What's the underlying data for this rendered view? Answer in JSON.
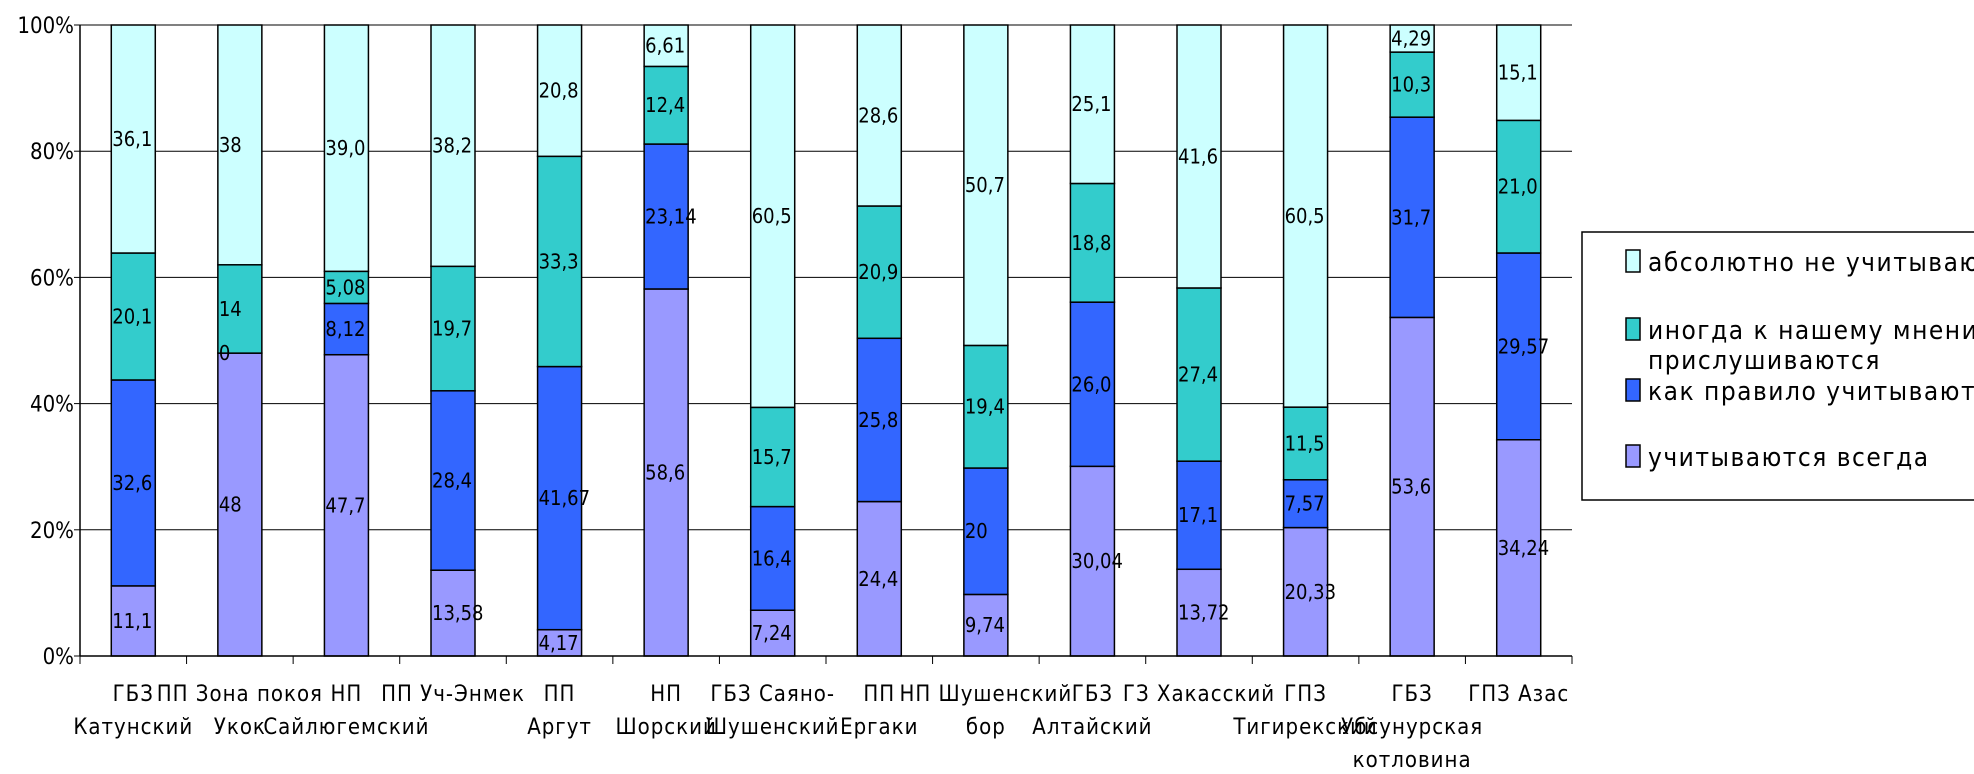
{
  "chart_data": {
    "type": "bar",
    "stacked": true,
    "percent_stacked": true,
    "title": "",
    "xlabel": "",
    "ylabel": "",
    "ylim": [
      0,
      100
    ],
    "y_ticks": [
      "0%",
      "20%",
      "40%",
      "60%",
      "80%",
      "100%"
    ],
    "grid": true,
    "legend_position": "right",
    "categories": [
      [
        "ГБЗ",
        "Катунский"
      ],
      [
        "ПП Зона покоя",
        "Укок"
      ],
      [
        "НП",
        "Сайлюгемский"
      ],
      [
        "ПП Уч-Энмек"
      ],
      [
        "ПП",
        "Аргут"
      ],
      [
        "НП",
        "Шорский"
      ],
      [
        "ГБЗ Саяно-",
        "Шушенский"
      ],
      [
        "ПП",
        "Ергаки"
      ],
      [
        "НП Шушенский",
        "бор"
      ],
      [
        "ГБЗ",
        "Алтайский"
      ],
      [
        "ГЗ Хакасский"
      ],
      [
        "ГПЗ",
        "Тигирекский"
      ],
      [
        "ГБЗ",
        "Убсунурская",
        "котловина"
      ],
      [
        "ГПЗ Азас"
      ]
    ],
    "series": [
      {
        "name": "учитываются всегда",
        "color": "#9999ff",
        "values": [
          11.1,
          48,
          47.7,
          13.58,
          4.17,
          58.6,
          7.24,
          24.4,
          9.74,
          30.04,
          13.72,
          20.33,
          53.6,
          34.24
        ],
        "labels": [
          "11,1",
          "48",
          "47,7",
          "13,58",
          "4,17",
          "58,6",
          "7,24",
          "24,4",
          "9,74",
          "30,04",
          "13,72",
          "20,33",
          "53,6",
          "34,24"
        ]
      },
      {
        "name": "как правило учитывают",
        "color": "#3366ff",
        "values": [
          32.6,
          0,
          8.12,
          28.4,
          41.67,
          23.14,
          16.4,
          25.8,
          20,
          26.0,
          17.1,
          7.57,
          31.7,
          29.57
        ],
        "labels": [
          "32,6",
          "0",
          "8,12",
          "28,4",
          "41,67",
          "23,14",
          "16,4",
          "25,8",
          "20",
          "26,0",
          "17,1",
          "7,57",
          "31,7",
          "29,57"
        ]
      },
      {
        "name": "иногда к нашему мнению прислушиваются",
        "color": "#33cccc",
        "values": [
          20.1,
          14,
          5.08,
          19.7,
          33.3,
          12.4,
          15.7,
          20.9,
          19.4,
          18.8,
          27.4,
          11.5,
          10.3,
          21.0
        ],
        "labels": [
          "20,1",
          "14",
          "5,08",
          "19,7",
          "33,3",
          "12,4",
          "15,7",
          "20,9",
          "19,4",
          "18,8",
          "27,4",
          "11,5",
          "10,3",
          "21,0"
        ]
      },
      {
        "name": "абсолютно не учитываются",
        "color": "#ccffff",
        "values": [
          36.1,
          38,
          39.0,
          38.2,
          20.8,
          6.61,
          60.5,
          28.6,
          50.7,
          25.1,
          41.6,
          60.5,
          4.29,
          15.1
        ],
        "labels": [
          "36,1",
          "38",
          "39,0",
          "38,2",
          "20,8",
          "6,61",
          "60,5",
          "28,6",
          "50,7",
          "25,1",
          "41,6",
          "60,5",
          "4,29",
          "15,1"
        ]
      }
    ],
    "legend": [
      {
        "text": [
          "абсолютно не учитываются"
        ],
        "color": "#ccffff"
      },
      {
        "text": [
          "иногда к нашему мнению",
          "прислушиваются"
        ],
        "color": "#33cccc"
      },
      {
        "text": [
          "как правило учитывают"
        ],
        "color": "#3366ff"
      },
      {
        "text": [
          "учитываются всегда"
        ],
        "color": "#9999ff"
      }
    ]
  }
}
